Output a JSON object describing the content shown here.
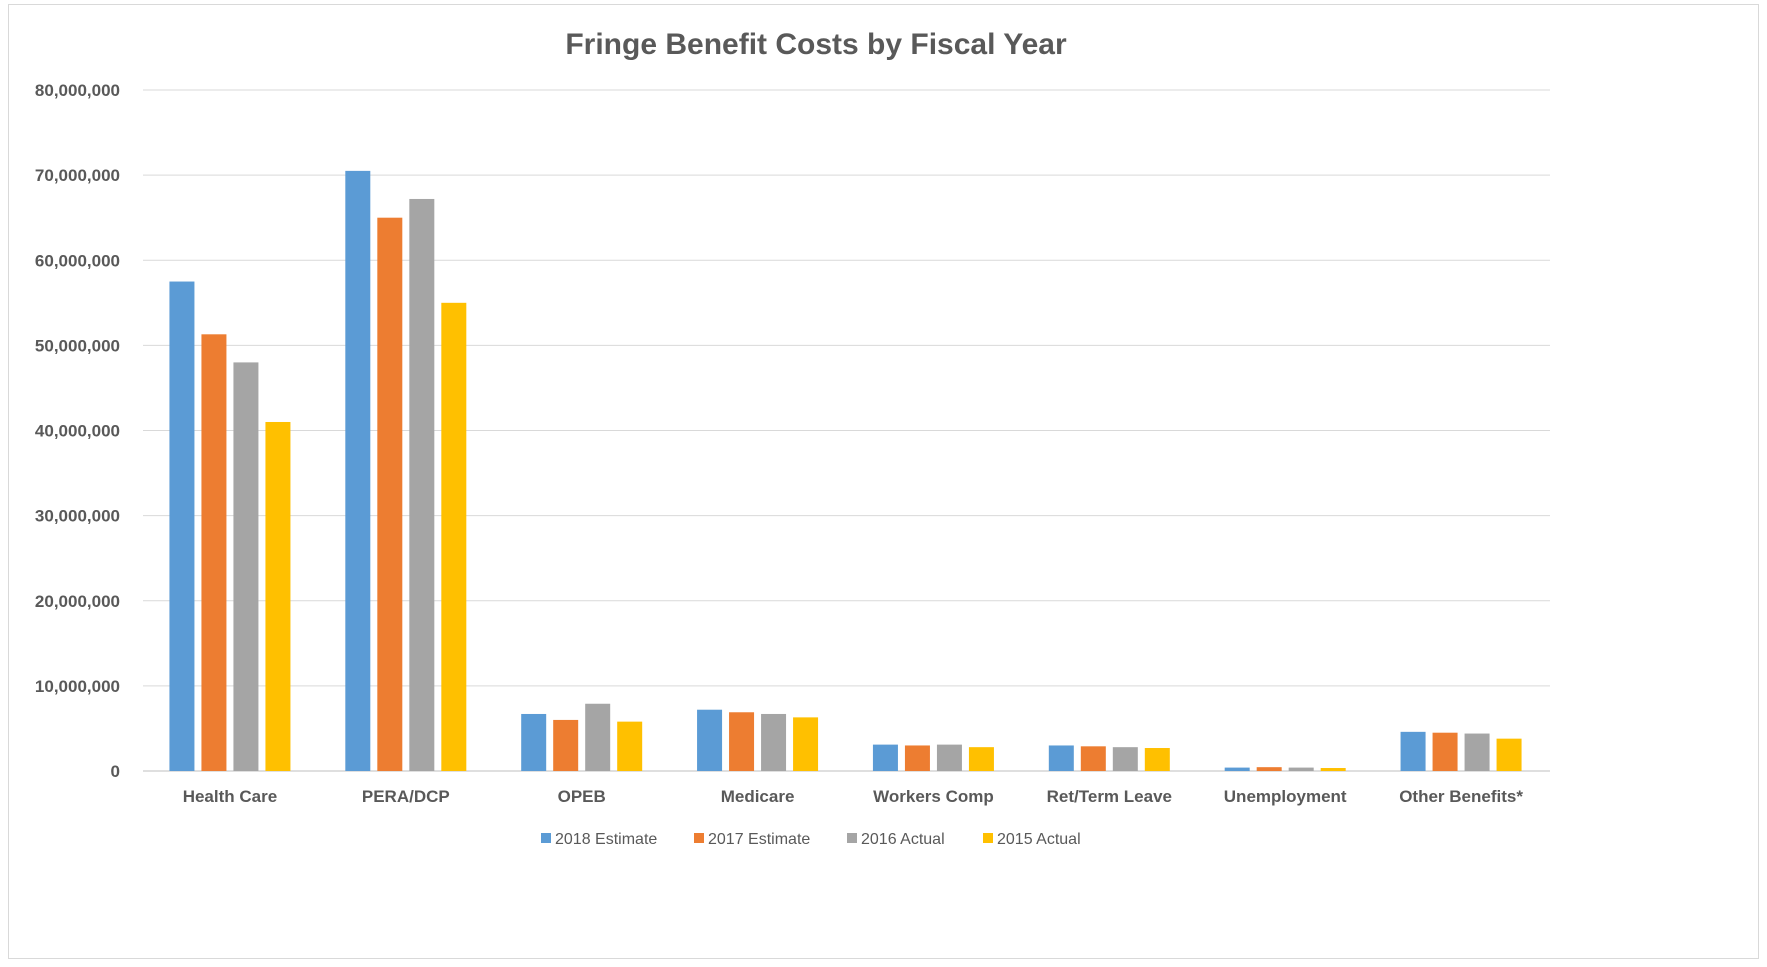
{
  "chart_data": {
    "type": "bar",
    "title": "Fringe Benefit Costs by Fiscal Year",
    "xlabel": "",
    "ylabel": "",
    "ylim": [
      0,
      80000000
    ],
    "yticks": [
      0,
      10000000,
      20000000,
      30000000,
      40000000,
      50000000,
      60000000,
      70000000,
      80000000
    ],
    "ytick_labels": [
      "0",
      "10,000,000",
      "20,000,000",
      "30,000,000",
      "40,000,000",
      "50,000,000",
      "60,000,000",
      "70,000,000",
      "80,000,000"
    ],
    "grid": true,
    "legend_position": "bottom",
    "categories": [
      "Health Care",
      "PERA/DCP",
      "OPEB",
      "Medicare",
      "Workers Comp",
      "Ret/Term Leave",
      "Unemployment",
      "Other Benefits*"
    ],
    "series": [
      {
        "name": "2018 Estimate",
        "color": "#5b9bd5",
        "values": [
          57500000,
          70500000,
          6700000,
          7200000,
          3100000,
          3000000,
          400000,
          4600000
        ]
      },
      {
        "name": "2017 Estimate",
        "color": "#ed7d31",
        "values": [
          51300000,
          65000000,
          6000000,
          6900000,
          3000000,
          2900000,
          450000,
          4500000
        ]
      },
      {
        "name": "2016 Actual",
        "color": "#a5a5a5",
        "values": [
          48000000,
          67200000,
          7900000,
          6700000,
          3100000,
          2800000,
          400000,
          4400000
        ]
      },
      {
        "name": "2015 Actual",
        "color": "#ffc000",
        "values": [
          41000000,
          55000000,
          5800000,
          6300000,
          2800000,
          2700000,
          350000,
          3800000
        ]
      }
    ]
  }
}
